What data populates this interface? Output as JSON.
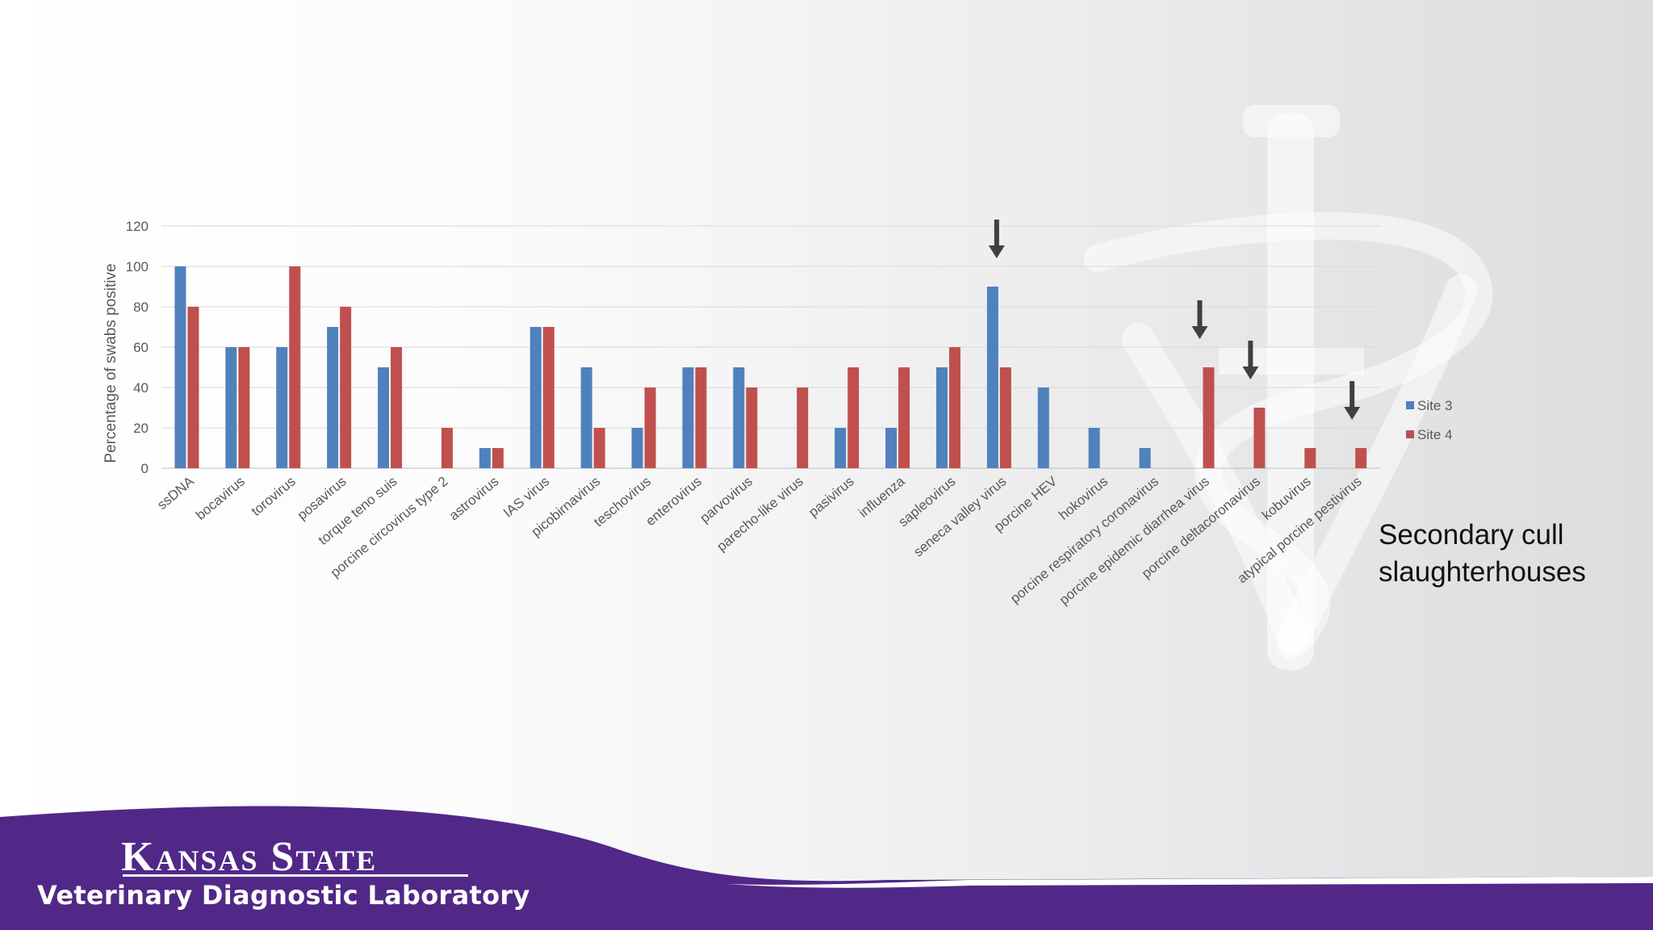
{
  "slide": {
    "subtitle": "Secondary cull\nslaughterhouses",
    "brand_title": "Kansas State",
    "brand_subtitle": "Veterinary Diagnostic Laboratory",
    "colors": {
      "purple": "#512888",
      "site3": "#4f81bd",
      "site4": "#c0504d",
      "arrow": "#404040"
    }
  },
  "chart_data": {
    "type": "bar",
    "title": "",
    "xlabel": "",
    "ylabel": "Percentage of swabs positive",
    "ylim": [
      0,
      120
    ],
    "yticks": [
      0,
      20,
      40,
      60,
      80,
      100,
      120
    ],
    "grid": true,
    "legend_position": "right",
    "categories": [
      "ssDNA",
      "bocavirus",
      "torovirus",
      "posavirus",
      "torque teno suis",
      "porcine circovirus type 2",
      "astrovirus",
      "IAS virus",
      "picobirnavirus",
      "teschovirus",
      "enterovirus",
      "parvovirus",
      "parecho-like virus",
      "pasivirus",
      "influenza",
      "sapleovirus",
      "seneca valley virus",
      "porcine HEV",
      "hokovirus",
      "porcine respiratory coronavirus",
      "porcine epidemic diarrhea virus",
      "porcine deltacoronavirus",
      "kobuvirus",
      "atypical porcine pestivirus"
    ],
    "series": [
      {
        "name": "Site 3",
        "values": [
          100,
          60,
          60,
          70,
          50,
          0,
          10,
          70,
          50,
          20,
          50,
          50,
          0,
          20,
          20,
          50,
          90,
          40,
          20,
          10,
          0,
          0,
          0,
          0
        ]
      },
      {
        "name": "Site 4",
        "values": [
          80,
          60,
          100,
          80,
          60,
          20,
          10,
          70,
          20,
          40,
          50,
          40,
          40,
          50,
          50,
          60,
          50,
          0,
          0,
          0,
          50,
          30,
          10,
          10
        ]
      }
    ],
    "arrows": [
      "seneca valley virus",
      "porcine epidemic diarrhea virus",
      "porcine deltacoronavirus",
      "atypical porcine pestivirus"
    ]
  }
}
